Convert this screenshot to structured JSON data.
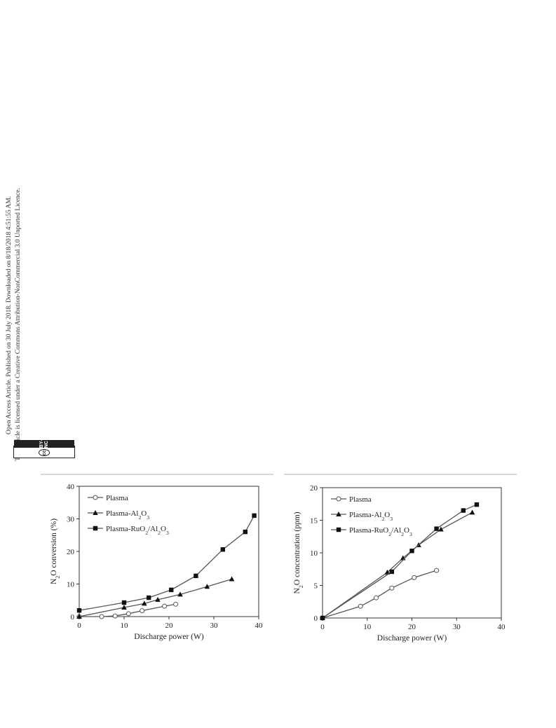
{
  "sidebar": {
    "line1": "Open Access Article. Published on 30 July 2018. Downloaded on 8/18/2018 4:51:55 AM.",
    "line2": "This article is licensed under a Creative Commons Attribution-NonCommercial 3.0 Unported Licence.",
    "badge_icon": "cc-icon",
    "badge_label": "BY-NC"
  },
  "chart_data": [
    {
      "type": "line",
      "xlabel": "Discharge power (W)",
      "ylabel": "N2O conversion (%)",
      "xlim": [
        0,
        40
      ],
      "ylim": [
        0,
        40
      ],
      "xticks": [
        0,
        10,
        20,
        30,
        40
      ],
      "yticks": [
        0,
        10,
        20,
        30,
        40
      ],
      "legend_position": "top-left",
      "series": [
        {
          "name": "Plasma",
          "marker": "circle-open",
          "x": [
            0,
            5,
            8,
            11,
            14,
            19,
            21.5
          ],
          "y": [
            0,
            0,
            0.2,
            0.9,
            1.8,
            3.2,
            3.8
          ]
        },
        {
          "name": "Plasma-Al2O3",
          "marker": "triangle",
          "x": [
            0,
            10,
            14.5,
            17.5,
            22.5,
            28.5,
            34
          ],
          "y": [
            0,
            2.8,
            4.0,
            5.2,
            6.8,
            9.2,
            11.5
          ]
        },
        {
          "name": "Plasma-RuO2/Al2O3",
          "marker": "square",
          "x": [
            0,
            10,
            15.5,
            20.5,
            26,
            32,
            37,
            39
          ],
          "y": [
            1.9,
            4.3,
            5.8,
            8.2,
            12.5,
            20.6,
            26.0,
            31.0
          ]
        }
      ]
    },
    {
      "type": "line",
      "xlabel": "Discharge power (W)",
      "ylabel": "N2O concentration (ppm)",
      "xlim": [
        0,
        40
      ],
      "ylim": [
        0,
        20
      ],
      "xticks": [
        0,
        10,
        20,
        30,
        40
      ],
      "yticks": [
        0,
        5,
        10,
        15,
        20
      ],
      "legend_position": "top-left",
      "series": [
        {
          "name": "Plasma",
          "marker": "circle-open",
          "x": [
            0,
            8.5,
            12,
            15.5,
            20.5,
            25.5
          ],
          "y": [
            0,
            1.8,
            3.1,
            4.6,
            6.2,
            7.3
          ]
        },
        {
          "name": "Plasma-Al2O3",
          "marker": "triangle",
          "x": [
            0,
            14.5,
            18,
            21.5,
            26.5,
            33.5
          ],
          "y": [
            0,
            7.0,
            9.2,
            11.2,
            13.6,
            16.2
          ]
        },
        {
          "name": "Plasma-RuO2/Al2O3",
          "marker": "square",
          "x": [
            0,
            15.5,
            20,
            25.5,
            31.5,
            34.5
          ],
          "y": [
            0,
            7.1,
            10.3,
            13.7,
            16.5,
            17.4
          ]
        }
      ]
    }
  ]
}
